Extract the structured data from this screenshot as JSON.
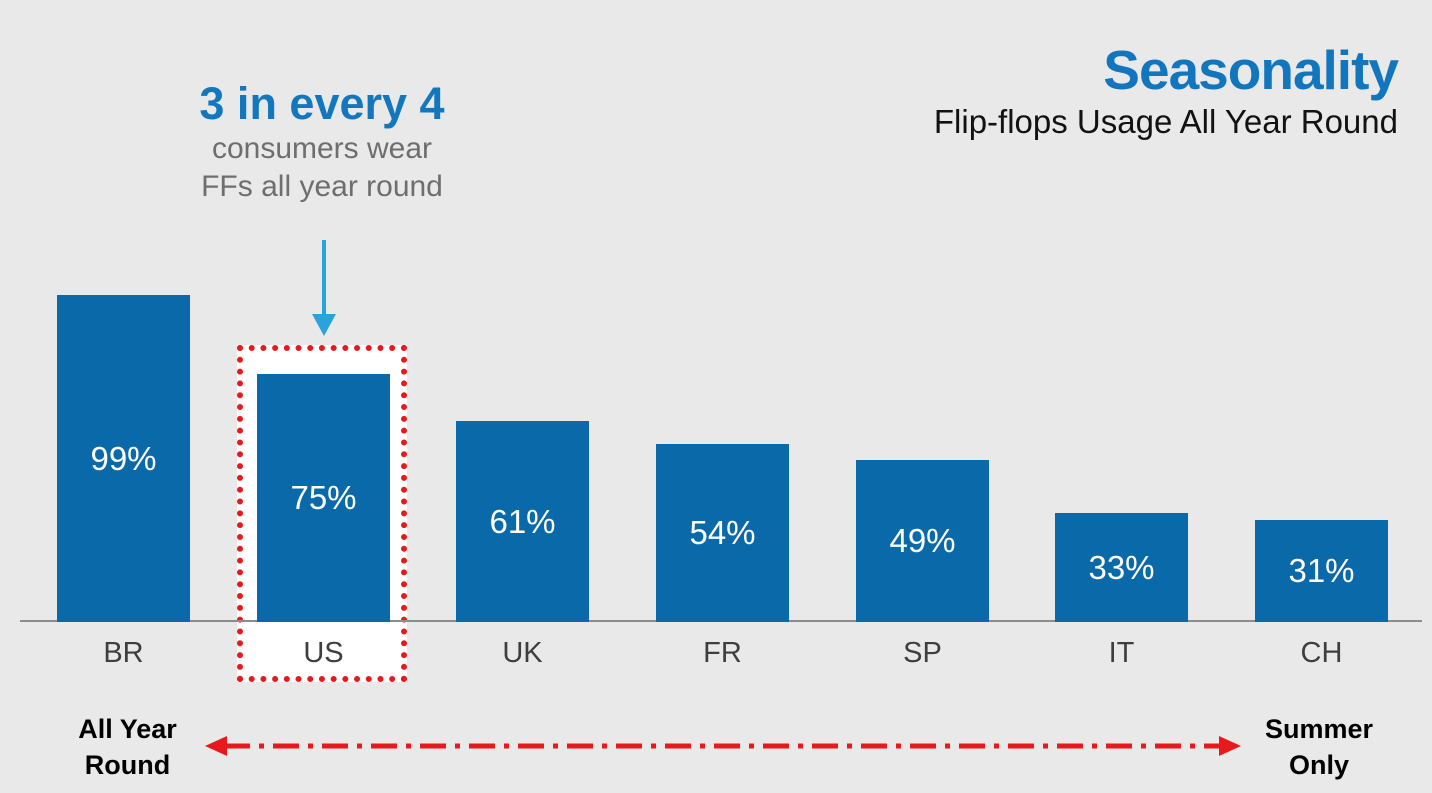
{
  "header": {
    "title": "Seasonality",
    "subtitle": "Flip-flops Usage All Year Round"
  },
  "annotation": {
    "headline": "3 in every 4",
    "line1": "consumers wear",
    "line2": "FFs all year round"
  },
  "footer": {
    "left_label_line1": "All Year",
    "left_label_line2": "Round",
    "right_label_line1": "Summer",
    "right_label_line2": "Only"
  },
  "colors": {
    "background": "#E9E9E9",
    "bar_blue": "#0A69A8",
    "title_blue": "#1176BE",
    "annotation_blue": "#1377BD",
    "annotation_gray": "#6E6E6E",
    "highlight_red": "#E8191C",
    "callout_arrow_blue": "#29A3DC",
    "axis_gray": "#8C8C8C",
    "category_text": "#3E3E3E",
    "value_text": "#FFFFFF",
    "footer_text": "#000000"
  },
  "chart_data": {
    "type": "bar",
    "title": "Seasonality",
    "subtitle": "Flip-flops Usage All Year Round",
    "categories": [
      "BR",
      "US",
      "UK",
      "FR",
      "SP",
      "IT",
      "CH"
    ],
    "values": [
      99,
      75,
      61,
      54,
      49,
      33,
      31
    ],
    "value_labels": [
      "99%",
      "75%",
      "61%",
      "54%",
      "49%",
      "33%",
      "31%"
    ],
    "xlabel": "",
    "ylabel": "",
    "ylim": [
      0,
      100
    ],
    "grid": false,
    "legend": "none",
    "bar_color": "#0A69A8",
    "highlighted_category": "US",
    "highlight_note": "3 in every 4 consumers wear FFs all year round",
    "x_axis_spectrum": {
      "left_end": "All Year Round",
      "right_end": "Summer Only"
    }
  }
}
